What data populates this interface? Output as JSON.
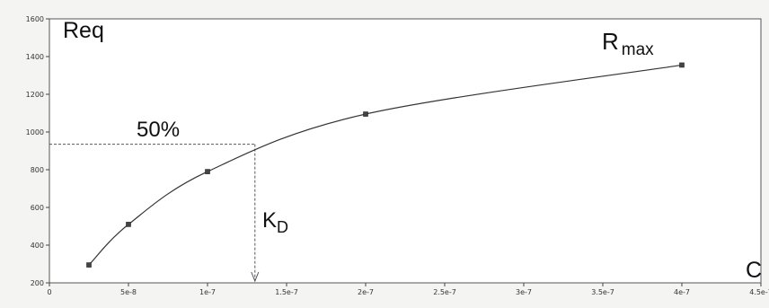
{
  "chart_data": {
    "type": "line",
    "title": "",
    "ylabel": "Req",
    "xlabel": "C",
    "xlim": [
      0,
      4.5e-07
    ],
    "ylim": [
      200,
      1600
    ],
    "x_ticks": [
      0,
      5e-08,
      1e-07,
      1.5e-07,
      2e-07,
      2.5e-07,
      3e-07,
      3.5e-07,
      4e-07,
      4.5e-07
    ],
    "x_tick_labels": [
      "0",
      "5e-8",
      "1e-7",
      "1.5e-7",
      "2e-7",
      "2.5e-7",
      "3e-7",
      "3.5e-7",
      "4e-7",
      "4.5e-7"
    ],
    "y_ticks": [
      200,
      400,
      600,
      800,
      1000,
      1200,
      1400,
      1600
    ],
    "y_tick_labels": [
      "200",
      "400",
      "600",
      "800",
      "1000",
      "1200",
      "1400",
      "1600"
    ],
    "grid": false,
    "series": [
      {
        "points": [
          {
            "x": 2.5e-08,
            "y": 295
          },
          {
            "x": 5e-08,
            "y": 510
          },
          {
            "x": 1e-07,
            "y": 790
          },
          {
            "x": 2e-07,
            "y": 1095
          },
          {
            "x": 4e-07,
            "y": 1355
          }
        ],
        "line_color": "#333333",
        "marker": "square"
      }
    ],
    "annotations": {
      "half_label": "50%",
      "half_y": 935,
      "kd_label": "K",
      "kd_sub": "D",
      "kd_x": 1.3e-07,
      "rmax_label": "R",
      "rmax_sub": "max"
    }
  }
}
